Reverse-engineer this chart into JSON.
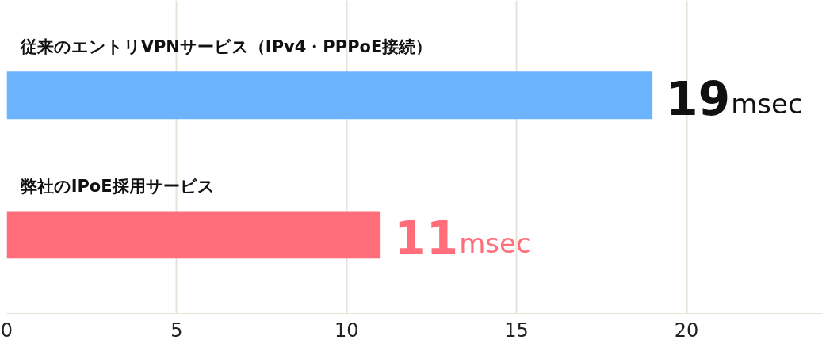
{
  "chart_data": {
    "type": "bar",
    "orientation": "horizontal",
    "categories": [
      "従来のエントリVPNサービス（IPv4・PPPoE接続）",
      "弊社のIPoE採用サービス"
    ],
    "values": [
      19,
      11
    ],
    "colors": [
      "#6cb5fe",
      "#ff6e7a"
    ],
    "value_labels": [
      "19msec",
      "11msec"
    ],
    "xlim": [
      0,
      24
    ],
    "xticks": [
      0,
      5,
      10,
      15,
      20
    ],
    "grid": "x"
  }
}
